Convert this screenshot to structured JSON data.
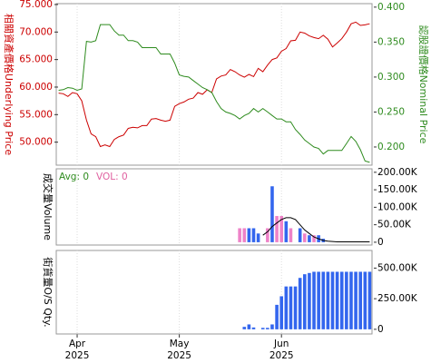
{
  "chart_data": [
    {
      "type": "line",
      "categories": [
        null,
        null,
        null,
        null,
        "Apr",
        null,
        null,
        null,
        null,
        null,
        null,
        null,
        null,
        null,
        null,
        null,
        null,
        null,
        null,
        null,
        null,
        null,
        null,
        null,
        null,
        null,
        "May",
        null,
        null,
        null,
        null,
        null,
        null,
        null,
        null,
        null,
        null,
        null,
        null,
        null,
        null,
        null,
        null,
        null,
        null,
        null,
        null,
        null,
        "Jun",
        null,
        null,
        null,
        null,
        null,
        null,
        null,
        null,
        null,
        null,
        null,
        null,
        null,
        null,
        null,
        null,
        null,
        null,
        null
      ],
      "category_years": [
        null,
        null,
        null,
        null,
        "2025",
        null,
        null,
        null,
        null,
        null,
        null,
        null,
        null,
        null,
        null,
        null,
        null,
        null,
        null,
        null,
        null,
        null,
        null,
        null,
        null,
        null,
        "2025",
        null,
        null,
        null,
        null,
        null,
        null,
        null,
        null,
        null,
        null,
        null,
        null,
        null,
        null,
        null,
        null,
        null,
        null,
        null,
        null,
        null,
        "2025",
        null,
        null,
        null,
        null,
        null,
        null,
        null,
        null,
        null,
        null,
        null,
        null,
        null,
        null,
        null,
        null,
        null,
        null,
        null
      ],
      "series": [
        {
          "name": "相關資產價格Underlying Price",
          "color": "#cc0000",
          "values": [
            58.9,
            58.8,
            58.3,
            59.0,
            58.8,
            57.5,
            54.0,
            51.5,
            51.0,
            49.2,
            49.5,
            49.2,
            50.5,
            51.0,
            51.3,
            52.5,
            52.7,
            52.6,
            53.0,
            53.0,
            54.2,
            54.3,
            54.0,
            53.8,
            54.0,
            56.5,
            57.0,
            57.3,
            57.8,
            58.0,
            59.0,
            58.7,
            59.5,
            59.0,
            61.5,
            62.0,
            62.2,
            63.2,
            62.8,
            62.2,
            61.8,
            62.3,
            61.9,
            63.4,
            62.8,
            64.0,
            65.0,
            65.3,
            66.5,
            67.0,
            68.4,
            68.5,
            70.0,
            69.8,
            69.3,
            69.0,
            68.8,
            69.4,
            68.7,
            67.3,
            68.0,
            68.8,
            70.0,
            71.5,
            71.8,
            71.2,
            71.3,
            71.5
          ]
        },
        {
          "name": "認股證價格Nominal Price",
          "color": "#2e8b1e",
          "axis": "y2",
          "values": [
            0.281,
            0.282,
            0.285,
            0.284,
            0.281,
            0.283,
            0.351,
            0.35,
            0.352,
            0.375,
            0.375,
            0.375,
            0.366,
            0.36,
            0.36,
            0.352,
            0.352,
            0.35,
            0.342,
            0.342,
            0.342,
            0.342,
            0.333,
            0.333,
            0.333,
            0.32,
            0.303,
            0.301,
            0.3,
            0.295,
            0.29,
            0.285,
            0.282,
            0.278,
            0.265,
            0.255,
            0.25,
            0.248,
            0.245,
            0.24,
            0.245,
            0.248,
            0.255,
            0.25,
            0.255,
            0.25,
            0.245,
            0.24,
            0.24,
            0.236,
            0.236,
            0.225,
            0.218,
            0.21,
            0.205,
            0.2,
            0.198,
            0.19,
            0.195,
            0.195,
            0.195,
            0.195,
            0.205,
            0.215,
            0.208,
            0.196,
            0.18,
            0.178
          ]
        }
      ],
      "ylim": [
        45.82,
        75.16
      ],
      "yticks": [
        {
          "value": 75,
          "label": "75.000"
        },
        {
          "value": 70,
          "label": "70.000"
        },
        {
          "value": 65,
          "label": "65.000"
        },
        {
          "value": 60,
          "label": "60.000"
        },
        {
          "value": 55,
          "label": "55.000"
        },
        {
          "value": 50,
          "label": "50.000"
        }
      ],
      "y2lim": [
        0.174,
        0.405
      ],
      "y2ticks": [
        {
          "value": 0.4,
          "label": "0.400"
        },
        {
          "value": 0.35,
          "label": "0.350"
        },
        {
          "value": 0.3,
          "label": "0.300"
        },
        {
          "value": 0.25,
          "label": "0.250"
        },
        {
          "value": 0.2,
          "label": "0.200"
        }
      ]
    },
    {
      "type": "bar",
      "ylabel": "成交量Volume",
      "annotations": [
        {
          "text": "Avg: 0",
          "color": "#2e8b1e"
        },
        {
          "text": "VOL: 0",
          "color": "#e060a0"
        }
      ],
      "values": [
        null,
        null,
        null,
        null,
        null,
        null,
        null,
        null,
        null,
        null,
        null,
        null,
        null,
        null,
        null,
        null,
        null,
        null,
        null,
        null,
        null,
        null,
        null,
        null,
        null,
        null,
        null,
        null,
        null,
        null,
        null,
        null,
        null,
        null,
        null,
        null,
        null,
        null,
        null,
        40000,
        40000,
        40000,
        40000,
        25000,
        null,
        40000,
        160000,
        75000,
        75000,
        60000,
        40000,
        null,
        40000,
        25000,
        20000,
        20000,
        20000,
        10000,
        null,
        null,
        null,
        null,
        null,
        null,
        null,
        null,
        null,
        null
      ],
      "colors": [
        null,
        null,
        null,
        null,
        null,
        null,
        null,
        null,
        null,
        null,
        null,
        null,
        null,
        null,
        null,
        null,
        null,
        null,
        null,
        null,
        null,
        null,
        null,
        null,
        null,
        null,
        null,
        null,
        null,
        null,
        null,
        null,
        null,
        null,
        null,
        null,
        null,
        null,
        null,
        "#ee82c8",
        "#ee82c8",
        "#3366ee",
        "#3366ee",
        "#3366ee",
        null,
        "#ee82c8",
        "#3366ee",
        "#ee82c8",
        "#ee82c8",
        "#3366ee",
        "#ee82c8",
        null,
        "#3366ee",
        "#ee82c8",
        "#3366ee",
        "#ee82c8",
        "#3366ee",
        "#3366ee",
        null,
        null,
        null,
        null,
        null,
        null,
        null,
        null,
        null,
        null
      ],
      "average": {
        "color": "#000000",
        "values": [
          null,
          null,
          null,
          null,
          null,
          null,
          null,
          null,
          null,
          null,
          null,
          null,
          null,
          null,
          null,
          null,
          null,
          null,
          null,
          null,
          null,
          null,
          null,
          null,
          null,
          null,
          null,
          null,
          null,
          null,
          null,
          null,
          null,
          null,
          null,
          null,
          null,
          null,
          null,
          null,
          null,
          null,
          null,
          null,
          20000,
          30000,
          45000,
          55000,
          65000,
          70000,
          70000,
          65000,
          50000,
          35000,
          25000,
          15000,
          10000,
          5000,
          3000,
          2000,
          1000,
          1000,
          1000,
          1000,
          1000,
          1000,
          1000,
          1000
        ]
      },
      "ylim": [
        -8000,
        210000
      ],
      "yticks": [
        {
          "value": 200000,
          "label": "200.00K"
        },
        {
          "value": 150000,
          "label": "150.00K"
        },
        {
          "value": 100000,
          "label": "100.00K"
        },
        {
          "value": 50000,
          "label": "50.00K"
        },
        0
      ]
    },
    {
      "type": "bar",
      "ylabel": "街貨量O/S Qty.",
      "color": "#3366ee",
      "values": [
        null,
        null,
        null,
        null,
        null,
        null,
        null,
        null,
        null,
        null,
        null,
        null,
        null,
        null,
        null,
        null,
        null,
        null,
        null,
        null,
        null,
        null,
        null,
        null,
        null,
        null,
        null,
        null,
        null,
        null,
        null,
        null,
        null,
        null,
        null,
        null,
        null,
        null,
        null,
        null,
        20000,
        40000,
        15000,
        null,
        12000,
        12000,
        40000,
        200000,
        270000,
        350000,
        350000,
        350000,
        420000,
        450000,
        460000,
        470000,
        470000,
        470000,
        470000,
        470000,
        470000,
        470000,
        470000,
        470000,
        470000,
        470000,
        470000,
        470000
      ],
      "ylim": [
        -38000,
        644000
      ],
      "yticks": [
        {
          "value": 500000,
          "label": "500.00K"
        },
        {
          "value": 250000,
          "label": "250.00K"
        },
        0
      ]
    }
  ]
}
